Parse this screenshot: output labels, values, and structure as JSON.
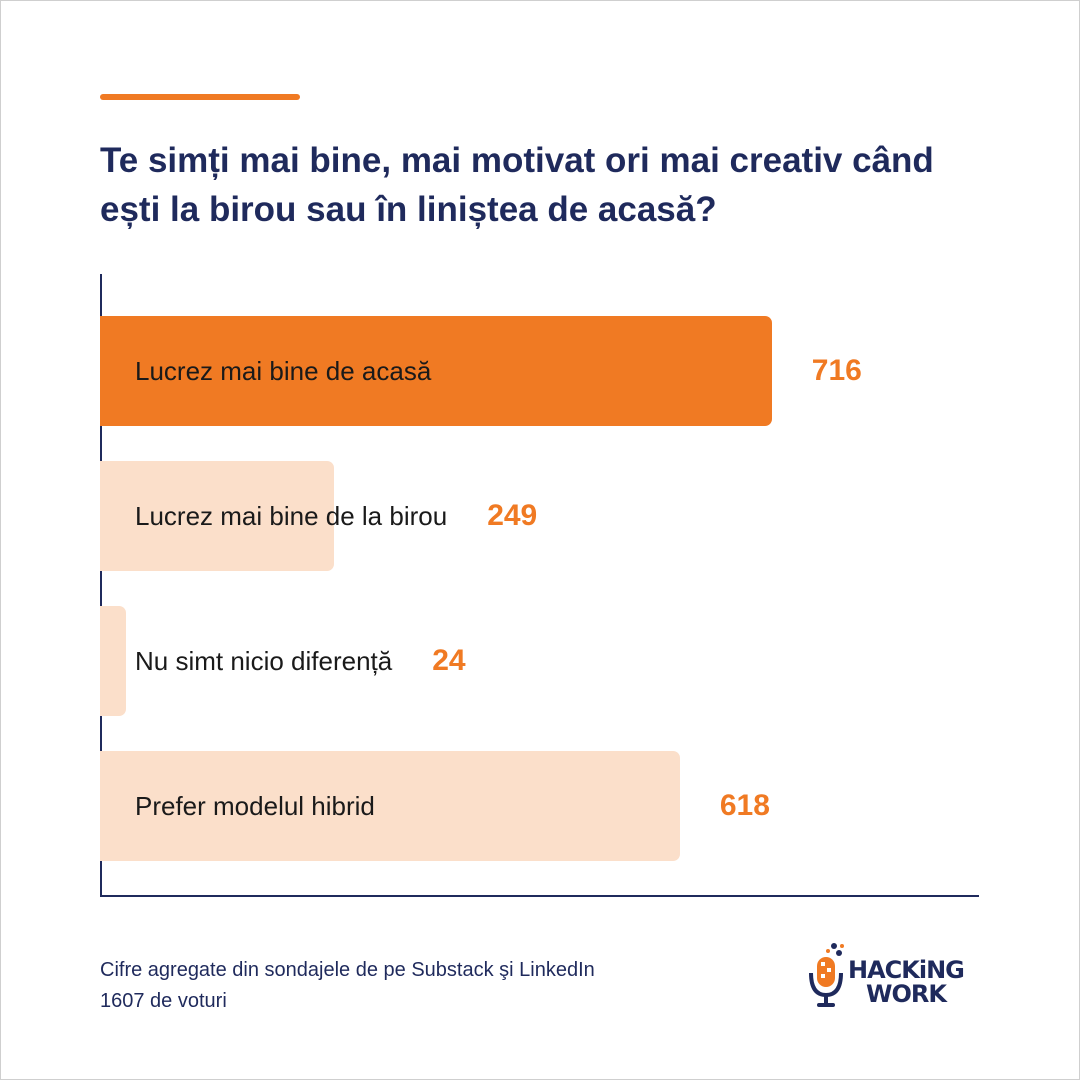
{
  "title": "Te simți mai bine, mai motivat ori mai creativ când ești la birou sau în liniștea de acasă?",
  "chart_data": {
    "type": "bar",
    "orientation": "horizontal",
    "categories": [
      "Lucrez mai bine de acasă",
      "Lucrez mai bine de la birou",
      "Nu simt nicio diferență",
      "Prefer modelul hibrid"
    ],
    "values": [
      716,
      249,
      24,
      618
    ],
    "title": "Te simți mai bine, mai motivat ori mai creativ când ești la birou sau în liniștea de acasă?",
    "xlabel": "",
    "ylabel": "",
    "xlim": [
      0,
      810
    ],
    "grid": false,
    "legend": "none",
    "colors": {
      "highlight": "#f07a23",
      "bar": "#fbdfca",
      "value_text": "#f07a23",
      "axis": "#1f2a5c"
    }
  },
  "footnote": {
    "line1": "Cifre agregate din sondajele de pe Substack şi LinkedIn",
    "line2": "1607 de voturi"
  },
  "logo": {
    "line1": "HACKiNG",
    "line2": "WORK"
  },
  "colors": {
    "accent": "#f07a23",
    "navy": "#1f2a5c"
  }
}
